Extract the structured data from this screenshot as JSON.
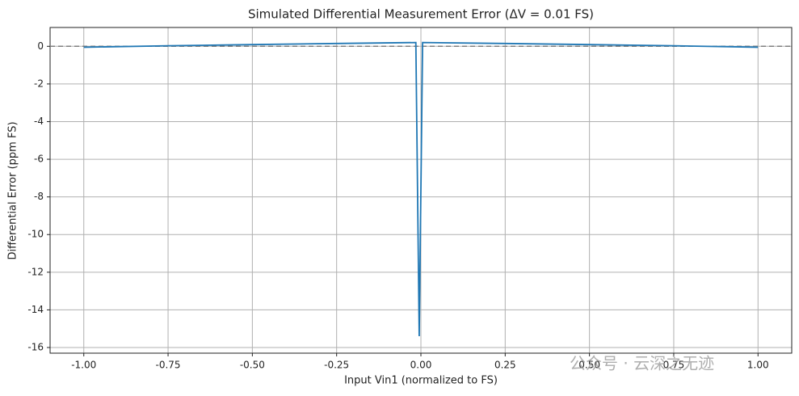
{
  "chart_data": {
    "type": "line",
    "title": "Simulated Differential Measurement Error (ΔV = 0.01 FS)",
    "x_label": "Input Vin1 (normalized to FS)",
    "y_label": "Differential Error (ppm FS)",
    "x": [
      -1.0,
      -0.75,
      -0.5,
      -0.25,
      -0.015,
      -0.005,
      0.005,
      0.25,
      0.5,
      0.75,
      1.0
    ],
    "series": [
      {
        "name": "Differential Error",
        "color": "#1f77b4",
        "values": [
          -0.05,
          0.03,
          0.09,
          0.15,
          0.2,
          -15.4,
          0.2,
          0.15,
          0.09,
          0.03,
          -0.05
        ]
      }
    ],
    "xlim": [
      -1.1,
      1.1
    ],
    "ylim": [
      -16.3,
      1.0
    ],
    "xticks": [
      {
        "value": -1.0,
        "label": "-1.00"
      },
      {
        "value": -0.75,
        "label": "-0.75"
      },
      {
        "value": -0.5,
        "label": "-0.50"
      },
      {
        "value": -0.25,
        "label": "-0.25"
      },
      {
        "value": 0,
        "label": "0.00"
      },
      {
        "value": 0.25,
        "label": "0.25"
      },
      {
        "value": 0.5,
        "label": "0.50"
      },
      {
        "value": 0.75,
        "label": "0.75"
      },
      {
        "value": 1.0,
        "label": "1.00"
      }
    ],
    "yticks": [
      0,
      -2,
      -4,
      -6,
      -8,
      -10,
      -12,
      -14,
      -16
    ],
    "reference_line": 0,
    "grid": true,
    "watermark": "公众号 · 云深之无迹"
  }
}
